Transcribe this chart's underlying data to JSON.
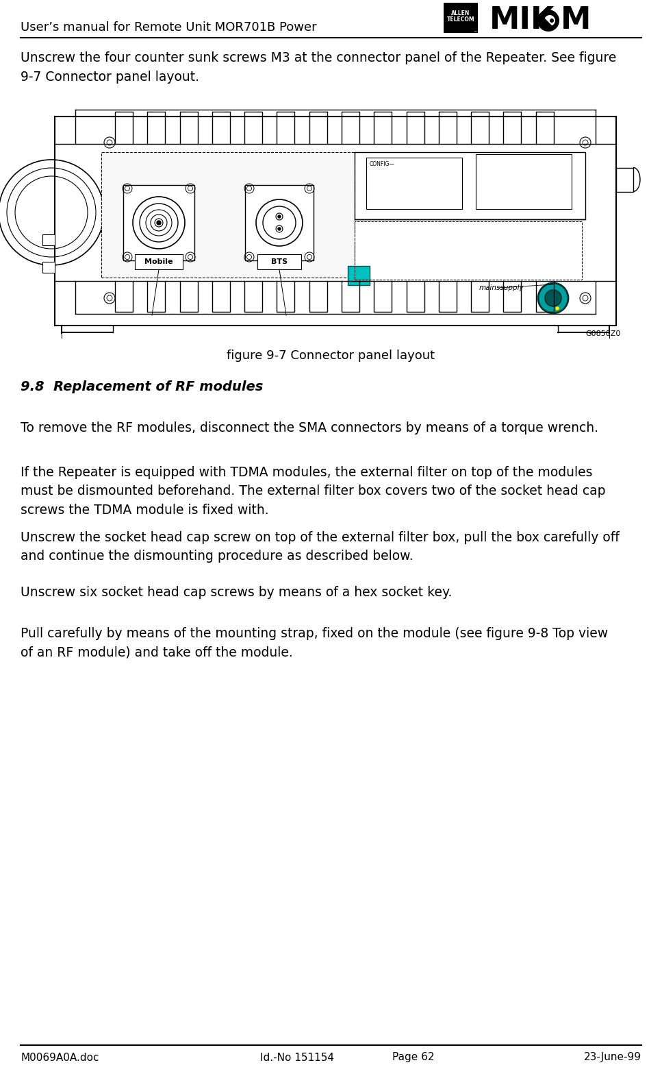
{
  "page_bg": "#ffffff",
  "header_title": "User’s manual for Remote Unit MOR701B Power",
  "footer_left": "M0069A0A.doc",
  "footer_center": "Id.-No 151154",
  "footer_page": "Page 62",
  "footer_right": "23-June-99",
  "body_text_1": "Unscrew the four counter sunk screws M3 at the connector panel of the Repeater. See figure\n9-7 Connector panel layout.",
  "figure_caption": "figure 9-7 Connector panel layout",
  "section_heading": "9.8  Replacement of RF modules",
  "body_text_2": "To remove the RF modules, disconnect the SMA connectors by means of a torque wrench.",
  "body_text_3": "If the Repeater is equipped with TDMA modules, the external filter on top of the modules\nmust be dismounted beforehand. The external filter box covers two of the socket head cap\nscrews the TDMA module is fixed with.",
  "body_text_4": "Unscrew the socket head cap screw on top of the external filter box, pull the box carefully off\nand continue the dismounting procedure as described below.",
  "body_text_5": "Unscrew six socket head cap screws by means of a hex socket key.",
  "body_text_6": "Pull carefully by means of the mounting strap, fixed on the module (see figure 9-8 Top view\nof an RF module) and take off the module.",
  "diagram_ref": "G0850Z0",
  "font_size_body": 13.5,
  "font_size_header": 13,
  "font_size_footer": 11,
  "font_size_section": 14,
  "font_size_caption": 13
}
